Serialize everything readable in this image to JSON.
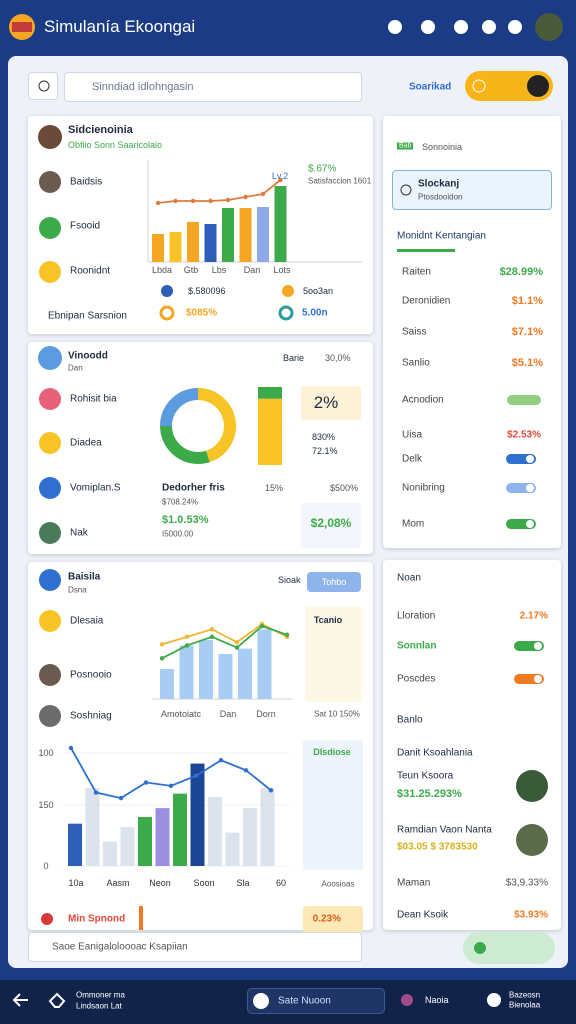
{
  "header": {
    "title": "Simulanía Ekoongai"
  },
  "search": {
    "placeholder": "Sinndiad idlohngasin",
    "button": "Soarikad"
  },
  "overview": {
    "title": "Sidcienoinia",
    "subtitle": "Obfiio Sonn Saaricolaio",
    "menu": [
      "Baidsis",
      "Fsooid",
      "Roonidnt",
      "Ebnipan Sarsnion"
    ],
    "chart": {
      "bars": [
        28,
        30,
        40,
        38,
        54,
        54,
        55,
        76
      ],
      "bar_colors": [
        "#f5a623",
        "#f7c325",
        "#f5a623",
        "#2e5fb8",
        "#3daa4a",
        "#f5a623",
        "#8fa8e8",
        "#3daa4a"
      ],
      "line": [
        59,
        61,
        61,
        61,
        62,
        65,
        68,
        82
      ],
      "line_color": "#e07b3c",
      "axis_labels": [
        "Lbda",
        "Gtb",
        "Lbs",
        "Dan",
        "Lots"
      ],
      "tag": "Lv.2",
      "note": "$.67%",
      "note2": "Satisfaccion 1601"
    },
    "legend": [
      "$.580096",
      "5oo3an",
      "$085%",
      "5.00n"
    ]
  },
  "sidebar": {
    "title": "Sonnoinia",
    "badge": "Bab",
    "selected": {
      "title": "Slockanj",
      "subtitle": "Ptosdooidon"
    },
    "section": "Monidnt Kentangian",
    "rows": [
      {
        "label": "Raiten",
        "value": "$28.99%"
      },
      {
        "label": "Deronidien",
        "value": "$1.1%"
      },
      {
        "label": "Saiss",
        "value": "$7.1%"
      },
      {
        "label": "Sanlio",
        "value": "$5.1%"
      }
    ],
    "toggles": [
      {
        "label": "Acnodion"
      },
      {
        "label": "Uisa",
        "value": "$2.53%"
      },
      {
        "label": "Delk"
      },
      {
        "label": "Nonibring"
      },
      {
        "label": "Mom"
      }
    ]
  },
  "segment": {
    "title": "Vinoodd",
    "subtitle": "Dan",
    "filter": "Barie",
    "filter_value": "30,0%",
    "menu": [
      "Rohisit bia",
      "Diadea",
      "Vomiplan.S",
      "Nak"
    ],
    "donut": [
      45,
      30,
      25
    ],
    "donut_colors": [
      "#f7c325",
      "#3daa4a",
      "#5b9be0"
    ],
    "gauge": [
      68,
      12
    ],
    "gauge_colors": [
      "#f7c325",
      "#3daa4a"
    ],
    "highlight": "2%",
    "stats": [
      "830%",
      "72.1%"
    ],
    "label": "Dedorher fris",
    "pct": "15%",
    "small": "$708.24%",
    "amount": "$1.0.53%",
    "sub": "I5000.00",
    "ref": "$500%",
    "total": "$2,08%"
  },
  "activity": {
    "title": "Baisila",
    "subtitle": "Dsna",
    "filter": "Sioak",
    "chip": "Tohbo",
    "menu": [
      "Dlesaia",
      "Posnooio",
      "Soshniag"
    ],
    "chart1": {
      "bars": [
        28,
        50,
        55,
        42,
        47,
        65
      ],
      "bar_color": "#a9cdf2",
      "line1": [
        51,
        58,
        65,
        53,
        70,
        58
      ],
      "line1_color": "#f2b632",
      "line2": [
        38,
        50,
        58,
        48,
        68,
        60
      ],
      "line2_color": "#3daa4a",
      "labels": [
        "Amotoiatc",
        "Dan",
        "Dorn"
      ],
      "side": "Tcanio",
      "side2": "Sat 10 150%"
    },
    "chart2": {
      "axis": [
        "100",
        "150",
        "0"
      ],
      "bars": [
        38,
        70,
        22,
        35,
        44,
        52,
        65,
        92,
        62,
        30,
        52,
        70
      ],
      "colors": [
        "#2e5fb8",
        "#dde3ec",
        "#dde3ec",
        "#dde3ec",
        "#3daa4a",
        "#9c8fe0",
        "#3daa4a",
        "#1d4596",
        "#dde3ec",
        "#dde3ec",
        "#dde3ec",
        "#dde3ec"
      ],
      "line": [
        106,
        66,
        61,
        75,
        72,
        81,
        95,
        86,
        68
      ],
      "line_color": "#2e6fd0",
      "labels": [
        "10a",
        "Aasm",
        "Neon",
        "Soon",
        "Sla",
        "60"
      ],
      "side": "Dlsdiose",
      "side2": "Aoosioas"
    },
    "promo": "Min Spnond",
    "promo_value": "0.23%"
  },
  "panel": {
    "title": "Noan",
    "rows": [
      {
        "label": "Lloration",
        "value": "2.17%"
      },
      {
        "label": "Sonnlan"
      },
      {
        "label": "Poscdes"
      }
    ],
    "section": "Banlo",
    "heading": "Danit Ksoahlania",
    "people": [
      {
        "name": "Teun Ksoora",
        "value": "$31.25.293%"
      },
      {
        "name": "Ramdian Vaon Nanta",
        "value": "$03.05 $ 3783530"
      }
    ],
    "totals": [
      {
        "label": "Maman",
        "value": "$3,9.33%"
      },
      {
        "label": "Dean Ksoik",
        "value": "$3.93%"
      }
    ]
  },
  "input": {
    "placeholder": "Saoe Eanigaloloooac Ksapiian"
  },
  "nav": {
    "left": [
      "Ommoner ma",
      "Lindsaon Lat"
    ],
    "search": "Sate Nuoon",
    "item": "Naoia",
    "right": [
      "Bazeosn",
      "Bienolaa"
    ]
  }
}
